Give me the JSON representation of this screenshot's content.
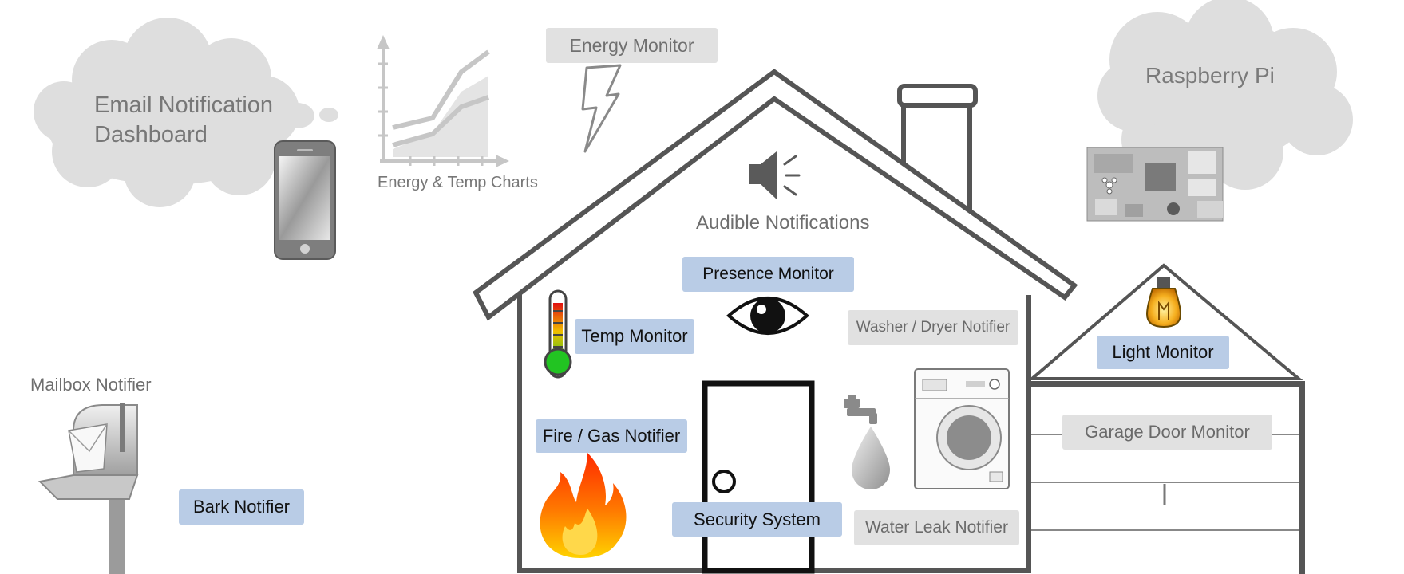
{
  "colors": {
    "house_stroke": "#555555",
    "blue_label": "#b9cce6",
    "grey_label": "#e1e1e1",
    "cloud": "#dedede"
  },
  "labels": {
    "email_dashboard_line1": "Email Notification",
    "email_dashboard_line2": "Dashboard",
    "energy_temp_charts": "Energy & Temp Charts",
    "energy_monitor": "Energy Monitor",
    "raspberry_pi": "Raspberry Pi",
    "audible_notifications": "Audible Notifications",
    "presence_monitor": "Presence Monitor",
    "temp_monitor": "Temp Monitor",
    "washer_dryer_notifier": "Washer / Dryer Notifier",
    "light_monitor": "Light Monitor",
    "mailbox_notifier": "Mailbox Notifier",
    "fire_gas_notifier": "Fire / Gas Notifier",
    "garage_door_monitor": "Garage Door Monitor",
    "bark_notifier": "Bark Notifier",
    "security_system": "Security System",
    "water_leak_notifier": "Water Leak Notifier"
  },
  "icons": {
    "cloud_left": "cloud-icon",
    "cloud_right": "cloud-icon",
    "phone": "smartphone-icon",
    "chart": "line-chart-icon",
    "lightning": "lightning-bolt-icon",
    "speaker": "speaker-icon",
    "raspberry_pi_board": "circuit-board-icon",
    "thermometer": "thermometer-icon",
    "eye": "eye-icon",
    "bulb": "light-bulb-icon",
    "mailbox": "mailbox-icon",
    "flame": "flame-icon",
    "faucet": "faucet-icon",
    "water_drop": "water-drop-icon",
    "washing_machine": "washing-machine-icon",
    "door": "door-icon"
  }
}
